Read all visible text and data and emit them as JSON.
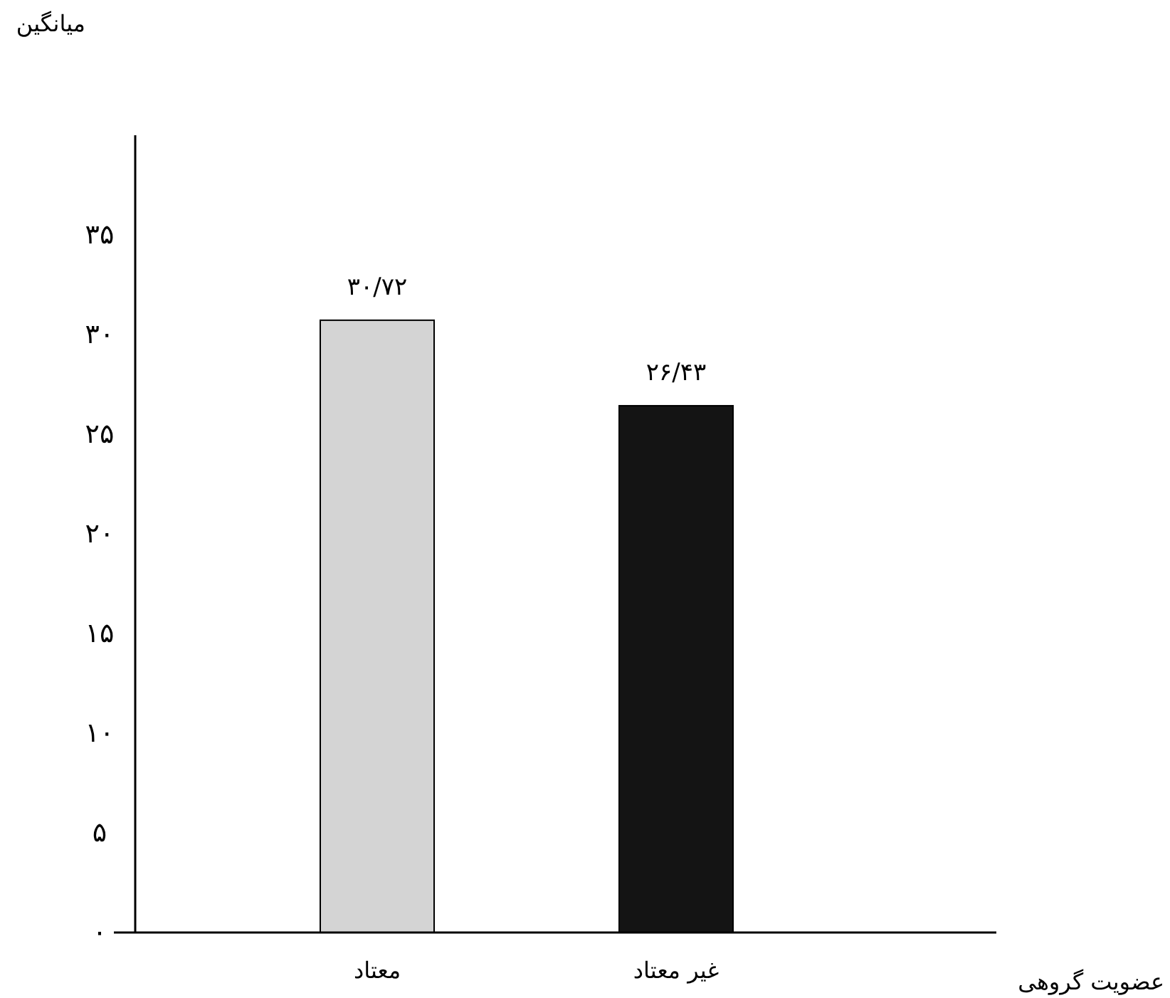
{
  "chart_data": {
    "type": "bar",
    "xlabel": "عضویت گروهی",
    "ylabel": "میانگین",
    "categories": [
      "معتاد",
      "غیر معتاد"
    ],
    "values": [
      30.72,
      26.43
    ],
    "colors": [
      "#d4d4d4",
      "#141414"
    ],
    "value_labels": [
      "۳۰/۷۲",
      "۲۶/۴۳"
    ],
    "ylim": [
      0,
      40
    ],
    "yticks": [
      {
        "value": 0,
        "label": "۰"
      },
      {
        "value": 5,
        "label": "۵"
      },
      {
        "value": 10,
        "label": "۱۰"
      },
      {
        "value": 15,
        "label": "۱۵"
      },
      {
        "value": 20,
        "label": "۲۰"
      },
      {
        "value": 25,
        "label": "۲۵"
      },
      {
        "value": 30,
        "label": "۳۰"
      },
      {
        "value": 35,
        "label": "۳۵"
      }
    ],
    "grid": false
  }
}
